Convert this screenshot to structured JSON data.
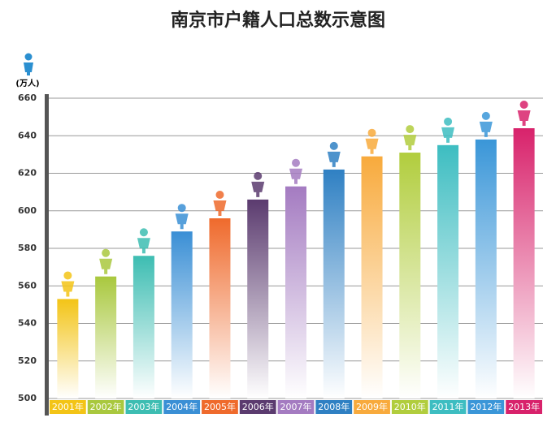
{
  "chart_data": {
    "type": "bar",
    "title": "南京市户籍人口总数示意图",
    "y_label": "(万人)",
    "categories": [
      "2001年",
      "2002年",
      "2003年",
      "2004年",
      "2005年",
      "2006年",
      "2007年",
      "2008年",
      "2009年",
      "2010年",
      "2011年",
      "2012年",
      "2013年"
    ],
    "values": [
      553,
      565,
      576,
      589,
      596,
      606,
      613,
      622,
      629,
      631,
      635,
      638,
      644
    ],
    "colors": [
      "#f3c416",
      "#a9c83e",
      "#3dbdb2",
      "#3a8fd5",
      "#ef6a2c",
      "#5b3b6f",
      "#a47bc1",
      "#2f80c3",
      "#f8aa3c",
      "#b1cd3d",
      "#3dbdc1",
      "#3a96d8",
      "#d8226b"
    ],
    "ylim": [
      500,
      660
    ],
    "yticks": [
      500,
      520,
      540,
      560,
      580,
      600,
      620,
      640,
      660
    ],
    "grid": true
  }
}
